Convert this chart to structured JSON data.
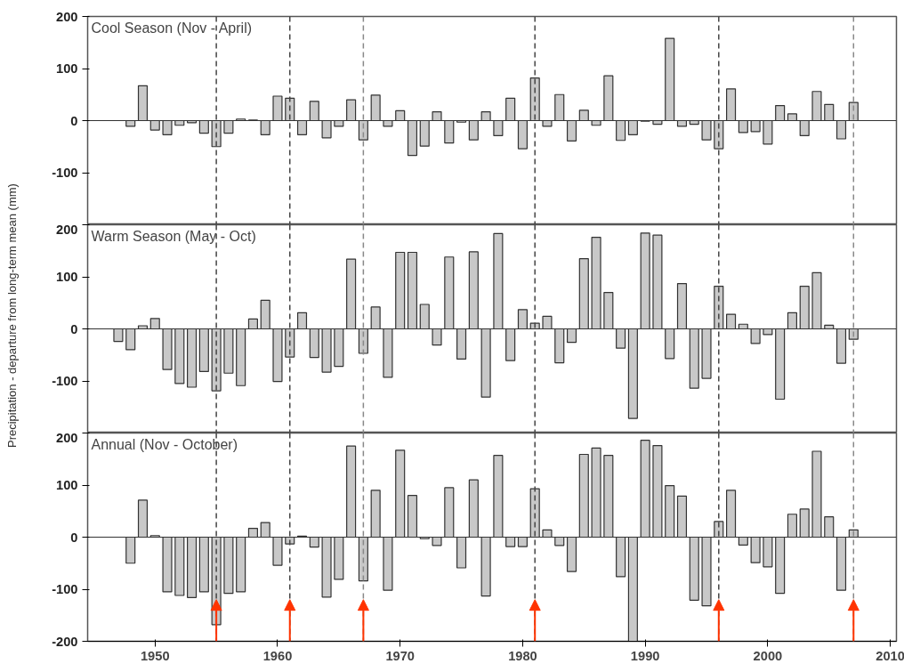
{
  "chart_data": [
    {
      "type": "bar",
      "title": "Cool Season (Nov - April)",
      "color": "#c8c8c8",
      "x": [
        1948,
        1949,
        1950,
        1951,
        1952,
        1953,
        1954,
        1955,
        1956,
        1957,
        1958,
        1959,
        1960,
        1961,
        1962,
        1963,
        1964,
        1965,
        1966,
        1967,
        1968,
        1969,
        1970,
        1971,
        1972,
        1973,
        1974,
        1975,
        1976,
        1977,
        1978,
        1979,
        1980,
        1981,
        1982,
        1983,
        1984,
        1985,
        1986,
        1987,
        1988,
        1989,
        1990,
        1991,
        1992,
        1993,
        1994,
        1995,
        1996,
        1997,
        1998,
        1999,
        2000,
        2001,
        2002,
        2003,
        2004,
        2005,
        2006,
        2007
      ],
      "values": [
        -11,
        67,
        -18,
        -27,
        -9,
        -4,
        -24,
        -50,
        -24,
        3,
        1,
        -27,
        47,
        43,
        -27,
        37,
        -33,
        -11,
        40,
        -37,
        49,
        -11,
        19,
        -67,
        -49,
        17,
        -43,
        -3,
        -37,
        17,
        -29,
        43,
        -54,
        82,
        -11,
        50,
        -39,
        20,
        -9,
        86,
        -38,
        -27,
        -1,
        -7,
        158,
        -11,
        -7,
        -37,
        -54,
        61,
        -23,
        -21,
        -45,
        29,
        13,
        -29,
        56,
        31,
        -35,
        35
      ],
      "xlim": [
        1944.5,
        2010.5
      ],
      "ylim": [
        -200,
        200
      ],
      "yticks": [
        {
          "value": -200,
          "label": null
        },
        -100,
        0,
        100,
        200
      ],
      "tick_labels": "y",
      "ref_lines": [
        {
          "axis": "y",
          "value": 0,
          "color": "#333333",
          "line_style": "solid"
        },
        {
          "axis": "x",
          "value": 1955,
          "color": "#444444",
          "line_style": "dashed"
        },
        {
          "axis": "x",
          "value": 1961,
          "color": "#444444",
          "line_style": "dashed"
        },
        {
          "axis": "x",
          "value": 1967,
          "color": "#888888",
          "line_style": "dashed"
        },
        {
          "axis": "x",
          "value": 1981,
          "color": "#444444",
          "line_style": "dashed"
        },
        {
          "axis": "x",
          "value": 1996,
          "color": "#444444",
          "line_style": "dashed"
        },
        {
          "axis": "x",
          "value": 2007,
          "color": "#888888",
          "line_style": "dashed"
        }
      ]
    },
    {
      "type": "bar",
      "title": "Warm Season (May - Oct)",
      "ylabel": "Precipitation - departure from long-term mean (mm)",
      "color": "#c8c8c8",
      "x": [
        1947,
        1948,
        1949,
        1950,
        1951,
        1952,
        1953,
        1954,
        1955,
        1956,
        1957,
        1958,
        1959,
        1960,
        1961,
        1962,
        1963,
        1964,
        1965,
        1966,
        1967,
        1968,
        1969,
        1970,
        1971,
        1972,
        1973,
        1974,
        1975,
        1976,
        1977,
        1978,
        1979,
        1980,
        1981,
        1982,
        1983,
        1984,
        1985,
        1986,
        1987,
        1988,
        1989,
        1990,
        1991,
        1992,
        1993,
        1994,
        1995,
        1996,
        1997,
        1998,
        1999,
        2000,
        2001,
        2002,
        2003,
        2004,
        2005,
        2006,
        2007
      ],
      "values": [
        -24,
        -40,
        6,
        20,
        -78,
        -105,
        -112,
        -82,
        -119,
        -85,
        -109,
        19,
        55,
        -101,
        -54,
        31,
        -55,
        -83,
        -72,
        134,
        -47,
        42,
        -93,
        147,
        147,
        47,
        -31,
        138,
        -58,
        148,
        -131,
        183,
        -61,
        37,
        11,
        24,
        -65,
        -26,
        135,
        176,
        70,
        -37,
        -172,
        184,
        180,
        -57,
        87,
        -114,
        -95,
        82,
        28,
        9,
        -28,
        -11,
        -135,
        31,
        82,
        108,
        7,
        -66,
        -20
      ],
      "xlim": [
        1944.5,
        2010.5
      ],
      "ylim": [
        -200,
        200
      ],
      "yticks": [
        {
          "value": -200,
          "label": null
        },
        -100,
        0,
        100,
        200
      ],
      "tick_labels": "y",
      "ref_lines": [
        {
          "axis": "y",
          "value": 0,
          "color": "#333333",
          "line_style": "solid"
        },
        {
          "axis": "x",
          "value": 1955,
          "color": "#444444",
          "line_style": "dashed"
        },
        {
          "axis": "x",
          "value": 1961,
          "color": "#444444",
          "line_style": "dashed"
        },
        {
          "axis": "x",
          "value": 1967,
          "color": "#888888",
          "line_style": "dashed"
        },
        {
          "axis": "x",
          "value": 1981,
          "color": "#444444",
          "line_style": "dashed"
        },
        {
          "axis": "x",
          "value": 1996,
          "color": "#444444",
          "line_style": "dashed"
        },
        {
          "axis": "x",
          "value": 2007,
          "color": "#888888",
          "line_style": "dashed"
        }
      ]
    },
    {
      "type": "bar",
      "title": "Annual (Nov - October)",
      "color": "#c8c8c8",
      "x": [
        1948,
        1949,
        1950,
        1951,
        1952,
        1953,
        1954,
        1955,
        1956,
        1957,
        1958,
        1959,
        1960,
        1961,
        1962,
        1963,
        1964,
        1965,
        1966,
        1967,
        1968,
        1969,
        1970,
        1971,
        1972,
        1973,
        1974,
        1975,
        1976,
        1977,
        1978,
        1979,
        1980,
        1981,
        1982,
        1983,
        1984,
        1985,
        1986,
        1987,
        1988,
        1989,
        1990,
        1991,
        1992,
        1993,
        1994,
        1995,
        1996,
        1997,
        1998,
        1999,
        2000,
        2001,
        2002,
        2003,
        2004,
        2005,
        2006,
        2007
      ],
      "values": [
        -50,
        71,
        3,
        -105,
        -112,
        -116,
        -105,
        -168,
        -108,
        -105,
        17,
        28,
        -54,
        -13,
        2,
        -19,
        -115,
        -81,
        175,
        -84,
        90,
        -102,
        167,
        80,
        -3,
        -16,
        95,
        -59,
        110,
        -113,
        157,
        -18,
        -18,
        93,
        14,
        -16,
        -66,
        159,
        171,
        157,
        -76,
        -200,
        186,
        176,
        99,
        79,
        -121,
        -132,
        30,
        90,
        -15,
        -49,
        -57,
        -108,
        44,
        54,
        165,
        39,
        -102,
        14
      ],
      "xlim": [
        1944.5,
        2010.5
      ],
      "xticks": [
        1950,
        1960,
        1970,
        1980,
        1990,
        2000,
        2010
      ],
      "ylim": [
        -200,
        200
      ],
      "yticks": [
        -200,
        -100,
        0,
        100,
        200
      ],
      "ref_lines": [
        {
          "axis": "y",
          "value": 0,
          "color": "#333333",
          "line_style": "solid"
        },
        {
          "axis": "x",
          "value": 1955,
          "color": "#444444",
          "line_style": "dashed"
        },
        {
          "axis": "x",
          "value": 1961,
          "color": "#444444",
          "line_style": "dashed"
        },
        {
          "axis": "x",
          "value": 1967,
          "color": "#888888",
          "line_style": "dashed"
        },
        {
          "axis": "x",
          "value": 1981,
          "color": "#444444",
          "line_style": "dashed"
        },
        {
          "axis": "x",
          "value": 1996,
          "color": "#444444",
          "line_style": "dashed"
        },
        {
          "axis": "x",
          "value": 2007,
          "color": "#888888",
          "line_style": "dashed"
        }
      ]
    }
  ]
}
